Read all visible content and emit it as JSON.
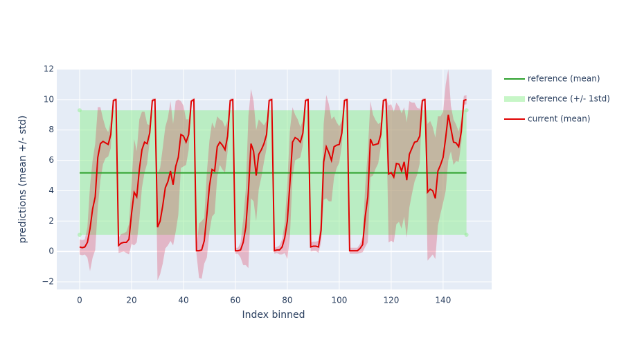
{
  "chart_data": {
    "type": "line",
    "xlabel": "Index binned",
    "ylabel": "predictions (mean +/- std)",
    "xlim": [
      -8.8,
      158.7
    ],
    "ylim": [
      -2.5,
      12
    ],
    "xticks": [
      0,
      20,
      40,
      60,
      80,
      100,
      120,
      140
    ],
    "yticks": [
      {
        "value": -2,
        "label": "−2"
      },
      0,
      2,
      4,
      6,
      8,
      10,
      12
    ],
    "grid": true,
    "legend": "right",
    "series": [
      {
        "name": "reference (mean)",
        "color": "#2ca02c",
        "x": [
          0,
          149
        ],
        "values": [
          5.18,
          5.18
        ]
      },
      {
        "name": "reference (+/- 1std)",
        "color": "#90ee90",
        "x": [
          0,
          149
        ],
        "lower": [
          1.1,
          1.1
        ],
        "upper": [
          9.3,
          9.3
        ]
      },
      {
        "name": "current (mean)",
        "color": "#e00000",
        "band_color": "#dc143c",
        "x": [
          0,
          1,
          2,
          3,
          4,
          5,
          6,
          7,
          8,
          9,
          10,
          11,
          12,
          13,
          14,
          15,
          16,
          17,
          18,
          19,
          20,
          21,
          22,
          23,
          24,
          25,
          26,
          27,
          28,
          29,
          30,
          31,
          32,
          33,
          34,
          35,
          36,
          37,
          38,
          39,
          40,
          41,
          42,
          43,
          44,
          45,
          46,
          47,
          48,
          49,
          50,
          51,
          52,
          53,
          54,
          55,
          56,
          57,
          58,
          59,
          60,
          61,
          62,
          63,
          64,
          65,
          66,
          67,
          68,
          69,
          70,
          71,
          72,
          73,
          74,
          75,
          76,
          77,
          78,
          79,
          80,
          81,
          82,
          83,
          84,
          85,
          86,
          87,
          88,
          89,
          90,
          91,
          92,
          93,
          94,
          95,
          96,
          97,
          98,
          99,
          100,
          101,
          102,
          103,
          104,
          105,
          106,
          107,
          108,
          109,
          110,
          111,
          112,
          113,
          114,
          115,
          116,
          117,
          118,
          119,
          120,
          121,
          122,
          123,
          124,
          125,
          126,
          127,
          128,
          129,
          130,
          131,
          132,
          133,
          134,
          135,
          136,
          137,
          138,
          139,
          140,
          141,
          142,
          143,
          144,
          145,
          146,
          147,
          148,
          149
        ],
        "values": [
          0.3,
          0.25,
          0.3,
          0.6,
          1.5,
          2.8,
          3.6,
          6.2,
          7.1,
          7.25,
          7.15,
          7.05,
          7.7,
          9.95,
          10,
          0.4,
          0.55,
          0.6,
          0.6,
          0.8,
          2.5,
          3.9,
          3.6,
          5.4,
          6.7,
          7.2,
          7.1,
          7.8,
          9.95,
          10,
          1.6,
          2.0,
          3.0,
          4.2,
          4.6,
          5.3,
          4.4,
          5.6,
          6.2,
          7.7,
          7.6,
          7.2,
          7.7,
          9.9,
          10,
          0.05,
          0.05,
          0.1,
          0.7,
          2.4,
          4.3,
          5.4,
          5.3,
          6.9,
          7.2,
          7.0,
          6.7,
          7.6,
          9.95,
          10,
          0.05,
          0.05,
          0.1,
          0.6,
          1.6,
          3.9,
          7.1,
          6.6,
          5.0,
          6.4,
          6.7,
          7.1,
          7.7,
          9.95,
          10,
          0.05,
          0.1,
          0.1,
          0.3,
          0.9,
          2.0,
          4.5,
          7.2,
          7.5,
          7.4,
          7.2,
          7.8,
          9.95,
          10,
          0.3,
          0.35,
          0.35,
          0.3,
          1.4,
          5.9,
          6.9,
          6.5,
          6.0,
          6.9,
          7.0,
          7.05,
          7.8,
          9.95,
          10,
          0.05,
          0.05,
          0.05,
          0.05,
          0.2,
          0.45,
          2.3,
          3.6,
          7.4,
          7.0,
          7.05,
          7.1,
          7.7,
          9.95,
          10,
          5.1,
          5.2,
          4.9,
          5.8,
          5.75,
          5.3,
          5.9,
          4.7,
          6.4,
          6.8,
          7.2,
          7.25,
          7.6,
          9.95,
          10,
          3.9,
          4.1,
          4.0,
          3.5,
          5.3,
          5.7,
          6.2,
          7.5,
          9.0,
          8.1,
          7.2,
          7.15,
          6.9,
          7.9,
          9.95,
          10
        ],
        "std": [
          0.5,
          0.5,
          0.5,
          1.0,
          2.8,
          3.2,
          3.5,
          3.3,
          2.4,
          1.5,
          1.0,
          0.8,
          0.9,
          0.1,
          0.1,
          0.5,
          0.6,
          0.6,
          0.7,
          1.0,
          2.0,
          3.5,
          3.0,
          3.3,
          2.5,
          2.0,
          1.3,
          0.5,
          0.1,
          0.1,
          3.5,
          3.5,
          3.8,
          4.0,
          4.2,
          4.6,
          4.0,
          4.3,
          3.8,
          2.2,
          2.0,
          1.5,
          1.0,
          0.1,
          0.1,
          0.2,
          1.8,
          1.9,
          1.5,
          2.8,
          3.0,
          3.1,
          2.8,
          2.0,
          1.5,
          1.6,
          1.5,
          1.0,
          0.1,
          0.1,
          0.2,
          0.2,
          0.5,
          1.5,
          2.5,
          5.0,
          3.6,
          3.3,
          3.0,
          2.3,
          1.8,
          1.2,
          0.9,
          0.1,
          0.1,
          0.2,
          0.2,
          0.3,
          0.5,
          1.0,
          2.5,
          3.5,
          2.3,
          1.5,
          1.3,
          1.0,
          0.8,
          0.1,
          0.1,
          0.3,
          0.3,
          0.3,
          0.4,
          0.8,
          2.5,
          3.4,
          3.2,
          2.7,
          2.0,
          1.5,
          1.2,
          0.8,
          0.1,
          0.1,
          0.2,
          0.2,
          0.2,
          0.2,
          0.3,
          0.5,
          2.0,
          3.0,
          2.5,
          2.0,
          1.6,
          1.3,
          0.8,
          0.1,
          0.1,
          4.5,
          4.5,
          4.3,
          4.0,
          3.8,
          3.8,
          3.6,
          3.8,
          3.5,
          3.0,
          2.6,
          2.2,
          1.8,
          0.1,
          0.1,
          4.5,
          4.5,
          4.2,
          4.0,
          3.6,
          3.2,
          3.0,
          3.5,
          3.0,
          1.5,
          1.5,
          1.2,
          1.0,
          0.8,
          0.3,
          0.3
        ]
      }
    ]
  }
}
